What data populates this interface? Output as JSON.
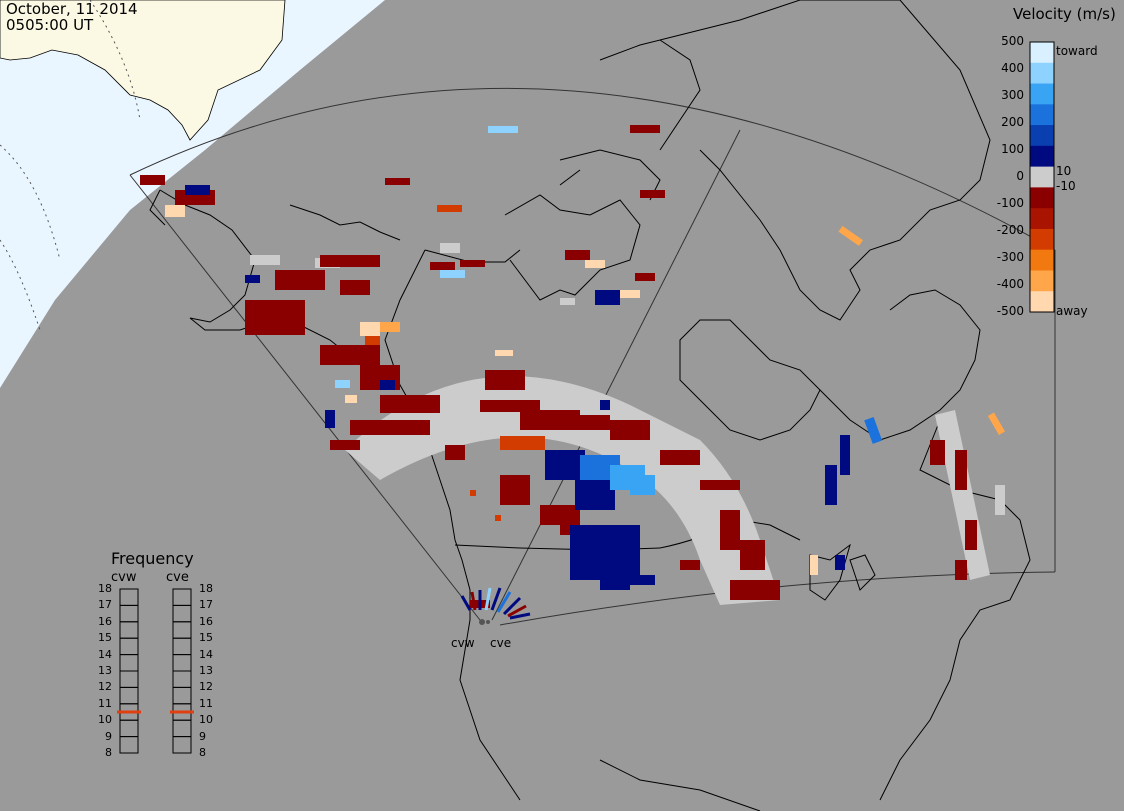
{
  "header": {
    "date": "October, 11 2014",
    "time": "0505:00 UT"
  },
  "velocity_scale": {
    "title": "Velocity (m/s)",
    "ticks": [
      "500",
      "400",
      "300",
      "200",
      "100",
      "0",
      "-100",
      "-200",
      "-300",
      "-400",
      "-500"
    ],
    "toward_label": "toward",
    "away_label": "away",
    "near_zero_pos": "10",
    "near_zero_neg": "-10",
    "colors": [
      "#d8f0ff",
      "#8ed2ff",
      "#3aa4f4",
      "#1c72dc",
      "#0a3fb0",
      "#000a80",
      "#cccccc",
      "#8a0000",
      "#a81400",
      "#d23c00",
      "#f27810",
      "#ffa64a",
      "#ffd8b0"
    ]
  },
  "frequency_panel": {
    "title": "Frequency",
    "radars": [
      "cvw",
      "cve"
    ],
    "ticks": [
      "18",
      "17",
      "16",
      "15",
      "14",
      "13",
      "12",
      "11",
      "10",
      "9",
      "8"
    ],
    "cvw_freq_mhz": 10.5,
    "cve_freq_mhz": 10.5,
    "marker_color": "#e04010"
  },
  "radar_sites": [
    "cvw",
    "cve"
  ],
  "map_colors": {
    "background": "#9a9a9a",
    "sunlit": "#eaf6ff",
    "land_sunlit": "#fbf8e4",
    "coast": "#000000",
    "ground_scatter": "#cccccc"
  }
}
